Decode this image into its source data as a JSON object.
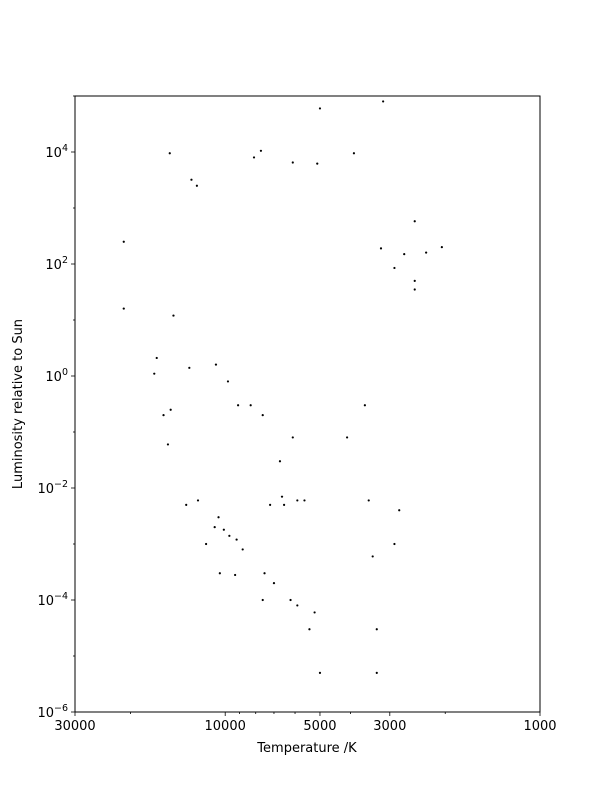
{
  "chart_data": {
    "type": "scatter",
    "xlabel": "Temperature /K",
    "ylabel": "Luminosity relative to Sun",
    "x_scale": "log",
    "x_inverted": true,
    "y_scale": "log",
    "xlim": [
      30000,
      1000
    ],
    "ylim": [
      1e-06,
      100000.0
    ],
    "x_ticks": [
      {
        "value": 30000,
        "label": "30000"
      },
      {
        "value": 10000,
        "label": "10000"
      },
      {
        "value": 5000,
        "label": "5000"
      },
      {
        "value": 3000,
        "label": "3000"
      },
      {
        "value": 1000,
        "label": "1000"
      }
    ],
    "y_ticks": [
      {
        "value": 1e-06,
        "base": "10",
        "exp": "−6"
      },
      {
        "value": 0.0001,
        "base": "10",
        "exp": "−4"
      },
      {
        "value": 0.01,
        "base": "10",
        "exp": "−2"
      },
      {
        "value": 1,
        "base": "10",
        "exp": "0"
      },
      {
        "value": 100,
        "base": "10",
        "exp": "2"
      },
      {
        "value": 10000,
        "base": "10",
        "exp": "4"
      }
    ],
    "grid": false,
    "marker_color": "#000000",
    "marker_size": "small",
    "series": [
      {
        "points": [
          [
            21000,
            16
          ],
          [
            21000,
            250
          ],
          [
            16500,
            2.1
          ],
          [
            16800,
            1.1
          ],
          [
            15700,
            0.2
          ],
          [
            15200,
            0.06
          ],
          [
            14900,
            0.25
          ],
          [
            14600,
            12
          ],
          [
            15000,
            9500
          ],
          [
            13000,
            1.4
          ],
          [
            13300,
            0.005
          ],
          [
            12200,
            0.006
          ],
          [
            11500,
            0.001
          ],
          [
            10400,
            0.0003
          ],
          [
            9300,
            0.00028
          ],
          [
            10800,
            0.002
          ],
          [
            10500,
            0.003
          ],
          [
            12300,
            2500
          ],
          [
            12800,
            3200
          ],
          [
            8100,
            8000
          ],
          [
            7700,
            10500
          ],
          [
            6100,
            6500
          ],
          [
            5100,
            6200
          ],
          [
            3900,
            9500
          ],
          [
            5000,
            60000
          ],
          [
            3150,
            80000
          ],
          [
            2700,
            150
          ],
          [
            2500,
            580
          ],
          [
            2050,
            200
          ],
          [
            2300,
            160
          ],
          [
            2500,
            50
          ],
          [
            2500,
            35
          ],
          [
            2900,
            85
          ],
          [
            3200,
            190
          ],
          [
            2800,
            0.004
          ],
          [
            2900,
            0.001
          ],
          [
            3300,
            5e-06
          ],
          [
            3300,
            3e-05
          ],
          [
            3400,
            0.0006
          ],
          [
            3500,
            0.006
          ],
          [
            3600,
            0.3
          ],
          [
            4100,
            0.08
          ],
          [
            5000,
            5e-06
          ],
          [
            5200,
            6e-05
          ],
          [
            5600,
            0.006
          ],
          [
            5900,
            0.006
          ],
          [
            6500,
            0.005
          ],
          [
            6600,
            0.007
          ],
          [
            7200,
            0.005
          ],
          [
            7600,
            0.2
          ],
          [
            6700,
            0.03
          ],
          [
            6100,
            0.08
          ],
          [
            6200,
            0.0001
          ],
          [
            5900,
            8e-05
          ],
          [
            7000,
            0.0002
          ],
          [
            7600,
            0.0001
          ],
          [
            5400,
            3e-05
          ],
          [
            7500,
            0.0003
          ],
          [
            8800,
            0.0008
          ],
          [
            9200,
            0.0012
          ],
          [
            9700,
            0.0014
          ],
          [
            10100,
            0.0018
          ],
          [
            8300,
            0.3
          ],
          [
            9100,
            0.3
          ],
          [
            9800,
            0.8
          ],
          [
            10700,
            1.6
          ]
        ]
      }
    ]
  }
}
